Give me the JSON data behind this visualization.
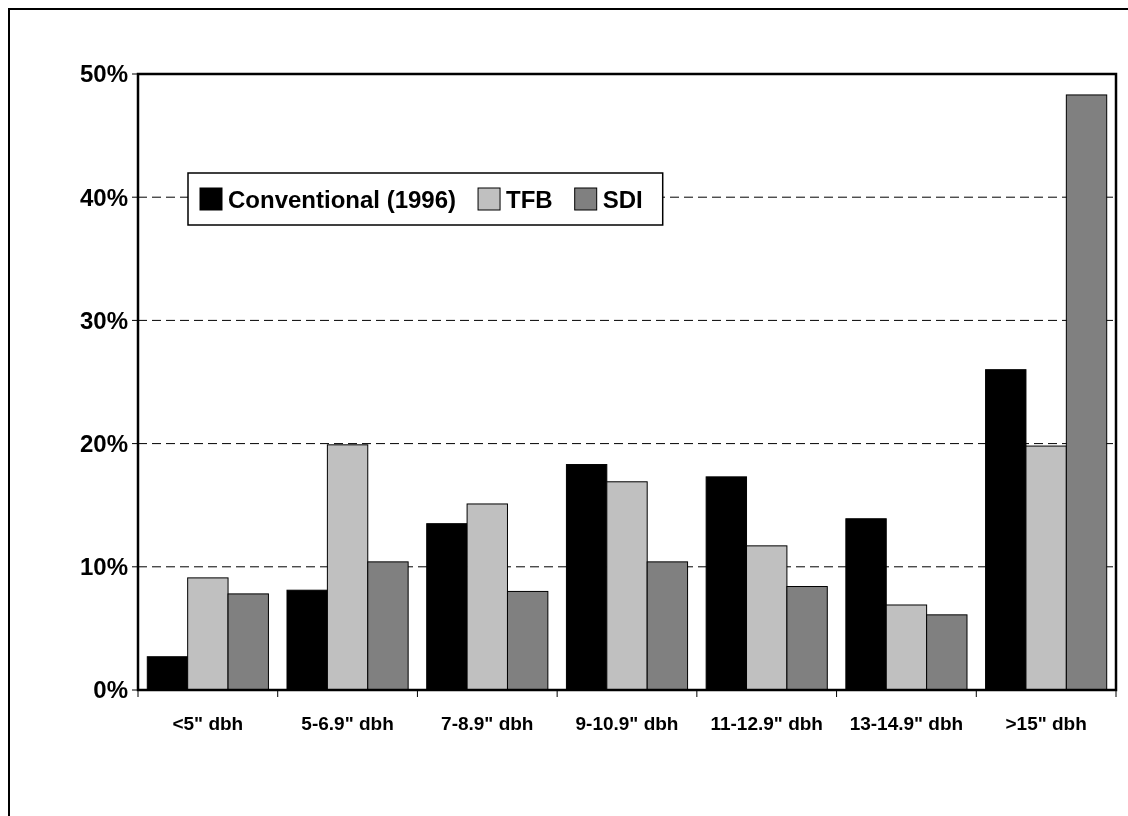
{
  "chart_data": {
    "type": "bar",
    "categories": [
      "<5\" dbh",
      "5-6.9\" dbh",
      "7-8.9\" dbh",
      "9-10.9\" dbh",
      "11-12.9\" dbh",
      "13-14.9\" dbh",
      ">15\" dbh"
    ],
    "series": [
      {
        "name": "Conventional (1996)",
        "color": "#000000",
        "values": [
          2.7,
          8.1,
          13.5,
          18.3,
          17.3,
          13.9,
          26.0
        ]
      },
      {
        "name": "TFB",
        "color": "#c0c0c0",
        "values": [
          9.1,
          19.9,
          15.1,
          16.9,
          11.7,
          6.9,
          19.8
        ]
      },
      {
        "name": "SDI",
        "color": "#808080",
        "values": [
          7.8,
          10.4,
          8.0,
          10.4,
          8.4,
          6.1,
          48.3
        ]
      }
    ],
    "ylim": [
      0,
      50
    ],
    "yticks": [
      {
        "value": 0,
        "label": "0%"
      },
      {
        "value": 10,
        "label": "10%"
      },
      {
        "value": 20,
        "label": "20%"
      },
      {
        "value": 30,
        "label": "30%"
      },
      {
        "value": 40,
        "label": "40%"
      },
      {
        "value": 50,
        "label": "50%"
      }
    ],
    "grid": "y",
    "legend": "top left"
  }
}
